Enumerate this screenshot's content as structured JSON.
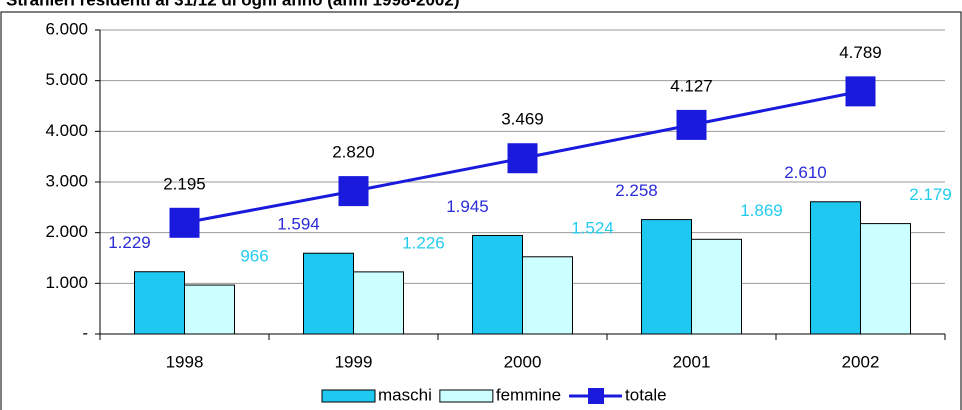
{
  "chart_data": {
    "type": "combo",
    "title": "Stranieri residenti al 31/12 di ogni anno (anni 1998-2002)",
    "categories": [
      "1998",
      "1999",
      "2000",
      "2001",
      "2002"
    ],
    "series": [
      {
        "name": "maschi",
        "type": "bar",
        "color": "#1ec8f0",
        "label_color": "#2b2bd8",
        "values": [
          1229,
          1594,
          1945,
          2258,
          2610
        ],
        "value_labels": [
          "1.229",
          "1.594",
          "1.945",
          "2.258",
          "2.610"
        ]
      },
      {
        "name": "femmine",
        "type": "bar",
        "color": "#ccffff",
        "label_color": "#22ccee",
        "values": [
          966,
          1226,
          1524,
          1869,
          2179
        ],
        "value_labels": [
          "966",
          "1.226",
          "1.524",
          "1.869",
          "2.179"
        ]
      },
      {
        "name": "totale",
        "type": "line",
        "color": "#1a1add",
        "label_color": "#000000",
        "values": [
          2195,
          2820,
          3469,
          4127,
          4789
        ],
        "value_labels": [
          "2.195",
          "2.820",
          "3.469",
          "4.127",
          "4.789"
        ]
      }
    ],
    "ylim": [
      0,
      6000
    ],
    "yticks": [
      {
        "value": 0,
        "label": "-"
      },
      {
        "value": 1000,
        "label": "1.000"
      },
      {
        "value": 2000,
        "label": "2.000"
      },
      {
        "value": 3000,
        "label": "3.000"
      },
      {
        "value": 4000,
        "label": "4.000"
      },
      {
        "value": 5000,
        "label": "5.000"
      },
      {
        "value": 6000,
        "label": "6.000"
      }
    ],
    "grid": true
  }
}
